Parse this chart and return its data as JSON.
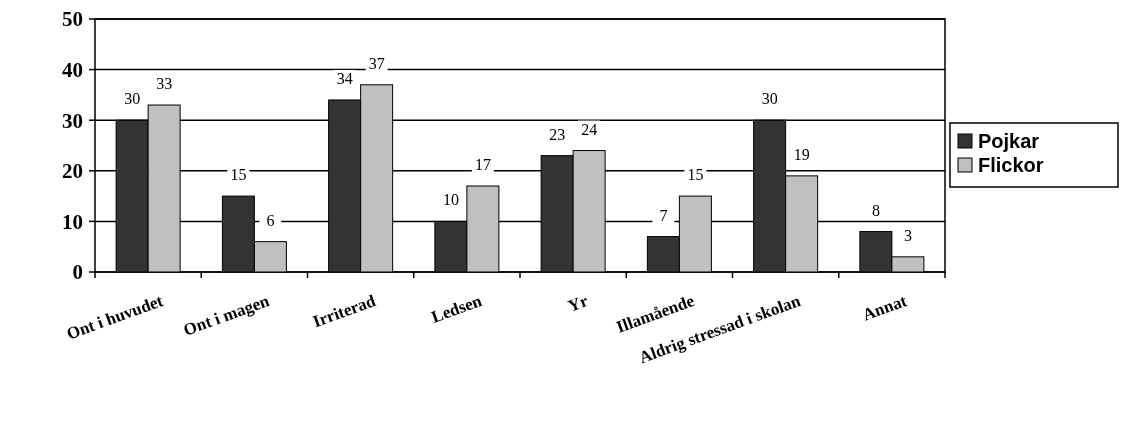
{
  "chart_data": {
    "type": "bar",
    "categories": [
      "Ont i huvudet",
      "Ont i magen",
      "Irriterad",
      "Ledsen",
      "Yr",
      "Illamående",
      "Aldrig stressad i skolan",
      "Annat"
    ],
    "series": [
      {
        "name": "Pojkar",
        "color": "#333333",
        "values": [
          30,
          15,
          34,
          10,
          23,
          7,
          30,
          8
        ]
      },
      {
        "name": "Flickor",
        "color": "#c0c0c0",
        "values": [
          33,
          6,
          37,
          17,
          24,
          15,
          19,
          3
        ]
      }
    ],
    "ylim": [
      0,
      50
    ],
    "yticks": [
      0,
      10,
      20,
      30,
      40,
      50
    ],
    "grid": "y",
    "legend": "right",
    "data_labels": true
  }
}
